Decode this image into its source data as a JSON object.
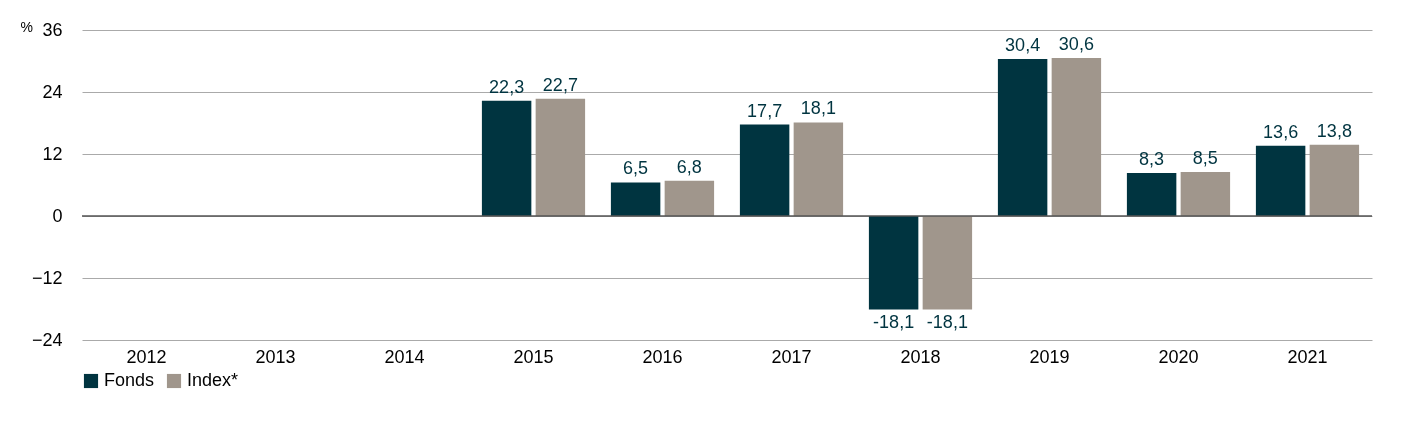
{
  "chart_data": {
    "type": "bar",
    "ylabel": "%",
    "categories": [
      "2012",
      "2013",
      "2014",
      "2015",
      "2016",
      "2017",
      "2018",
      "2019",
      "2020",
      "2021"
    ],
    "series": [
      {
        "name": "Fonds",
        "color": "#003440",
        "values": [
          null,
          null,
          null,
          22.3,
          6.5,
          17.7,
          -18.1,
          30.4,
          8.3,
          13.6
        ],
        "value_labels": [
          null,
          null,
          null,
          "22,3",
          "6,5",
          "17,7",
          "-18,1",
          "30,4",
          "8,3",
          "13,6"
        ]
      },
      {
        "name": "Index*",
        "color": "#a0968c",
        "values": [
          null,
          null,
          null,
          22.7,
          6.8,
          18.1,
          -18.1,
          30.6,
          8.5,
          13.8
        ],
        "value_labels": [
          null,
          null,
          null,
          "22,7",
          "6,8",
          "18,1",
          "-18,1",
          "30,6",
          "8,5",
          "13,8"
        ]
      }
    ],
    "ylim": [
      -24,
      36
    ],
    "yticks": [
      -24,
      -12,
      0,
      12,
      24,
      36
    ],
    "grid": "y",
    "legend": "bottom"
  }
}
